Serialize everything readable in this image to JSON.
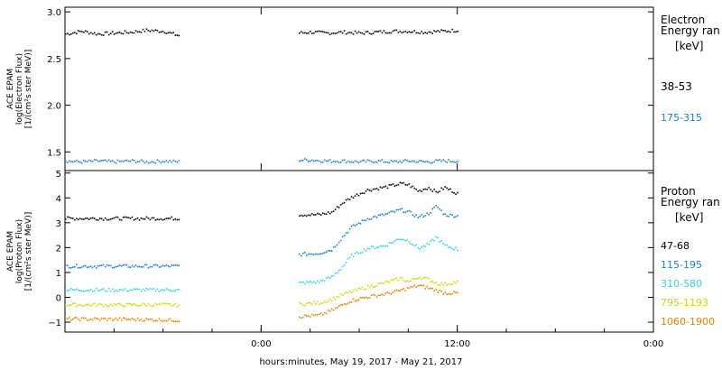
{
  "figure": {
    "xlabel": "hours:minutes, May 19, 2017 - May 21, 2017",
    "x_ticks": [
      {
        "t": 0,
        "label": ""
      },
      {
        "t": 24,
        "label": "0:00"
      },
      {
        "t": 36,
        "label": "12:00"
      },
      {
        "t": 48,
        "label": "0:00"
      }
    ]
  },
  "chart_data": [
    {
      "type": "scatter",
      "panel": "electron",
      "ylabel_lines": [
        "ACE EPAM",
        "log(Electron Flux)",
        "[1/(cm²s ster MeV)]"
      ],
      "ylim": [
        1.3,
        3.05
      ],
      "yticks": [
        1.5,
        2.0,
        2.5,
        3.0
      ],
      "ytick_labels": [
        "1.5",
        "2.0",
        "2.5",
        "3.0"
      ],
      "xlim_hours": [
        12,
        48
      ],
      "data_gaps_hours": [
        [
          19,
          26.2
        ]
      ],
      "legend": {
        "title_lines": [
          "Electron",
          "Energy ran",
          "[keV]"
        ],
        "placement": "right"
      },
      "series": [
        {
          "name": "38-53",
          "color": "#000000",
          "points": [
            [
              12.0,
              2.77
            ],
            [
              13.0,
              2.8
            ],
            [
              14.0,
              2.77
            ],
            [
              15.0,
              2.78
            ],
            [
              16.0,
              2.79
            ],
            [
              17.0,
              2.81
            ],
            [
              18.0,
              2.8
            ],
            [
              19.0,
              2.75
            ],
            [
              26.2,
              2.78
            ],
            [
              27.0,
              2.79
            ],
            [
              28.0,
              2.78
            ],
            [
              29.0,
              2.79
            ],
            [
              30.0,
              2.78
            ],
            [
              31.0,
              2.79
            ],
            [
              32.0,
              2.8
            ],
            [
              33.0,
              2.8
            ],
            [
              34.0,
              2.79
            ],
            [
              35.0,
              2.8
            ],
            [
              36.0,
              2.81
            ]
          ]
        },
        {
          "name": "175-315",
          "color": "#1a7ed6",
          "points": [
            [
              12.0,
              1.41
            ],
            [
              13.0,
              1.4
            ],
            [
              14.0,
              1.41
            ],
            [
              15.0,
              1.4
            ],
            [
              16.0,
              1.41
            ],
            [
              17.0,
              1.4
            ],
            [
              18.0,
              1.41
            ],
            [
              19.0,
              1.4
            ],
            [
              26.2,
              1.42
            ],
            [
              27.0,
              1.42
            ],
            [
              28.0,
              1.41
            ],
            [
              29.0,
              1.41
            ],
            [
              30.0,
              1.4
            ],
            [
              31.0,
              1.41
            ],
            [
              32.0,
              1.4
            ],
            [
              33.0,
              1.41
            ],
            [
              34.0,
              1.4
            ],
            [
              35.0,
              1.41
            ],
            [
              36.0,
              1.41
            ]
          ]
        }
      ]
    },
    {
      "type": "scatter",
      "panel": "proton",
      "ylabel_lines": [
        "ACE EPAM",
        "log(Proton Flux)",
        "[1/(cm²s ster MeV)]"
      ],
      "ylim": [
        -1.4,
        5.1
      ],
      "yticks": [
        -1,
        0,
        1,
        2,
        3,
        4,
        5
      ],
      "ytick_labels": [
        "−1",
        "0",
        "1",
        "2",
        "3",
        "4",
        "5"
      ],
      "xlim_hours": [
        12,
        48
      ],
      "data_gaps_hours": [
        [
          19,
          26.2
        ]
      ],
      "legend": {
        "title_lines": [
          "Proton",
          "Energy ran",
          "[keV]"
        ],
        "placement": "right"
      },
      "series": [
        {
          "name": "47-68",
          "color": "#000000",
          "points": [
            [
              12.0,
              3.2
            ],
            [
              15.0,
              3.2
            ],
            [
              18.0,
              3.2
            ],
            [
              19.0,
              3.2
            ],
            [
              26.2,
              3.35
            ],
            [
              27.5,
              3.35
            ],
            [
              28.3,
              3.45
            ],
            [
              29.0,
              3.85
            ],
            [
              29.5,
              4.05
            ],
            [
              30.5,
              4.35
            ],
            [
              31.5,
              4.45
            ],
            [
              32.5,
              4.6
            ],
            [
              33.0,
              4.55
            ],
            [
              33.6,
              4.3
            ],
            [
              34.2,
              4.45
            ],
            [
              34.7,
              4.25
            ],
            [
              35.2,
              4.45
            ],
            [
              36.0,
              4.2
            ]
          ]
        },
        {
          "name": "115-195",
          "color": "#1a7ed6",
          "points": [
            [
              12.0,
              1.28
            ],
            [
              15.0,
              1.28
            ],
            [
              18.0,
              1.28
            ],
            [
              19.0,
              1.28
            ],
            [
              26.2,
              1.75
            ],
            [
              27.5,
              1.8
            ],
            [
              28.3,
              1.95
            ],
            [
              29.0,
              2.5
            ],
            [
              29.5,
              2.85
            ],
            [
              30.5,
              3.2
            ],
            [
              31.5,
              3.35
            ],
            [
              32.5,
              3.55
            ],
            [
              33.0,
              3.45
            ],
            [
              33.6,
              3.25
            ],
            [
              34.2,
              3.4
            ],
            [
              34.7,
              3.7
            ],
            [
              35.2,
              3.35
            ],
            [
              36.0,
              3.3
            ]
          ]
        },
        {
          "name": "310-580",
          "color": "#33d6d6",
          "points": [
            [
              12.0,
              0.33
            ],
            [
              15.0,
              0.32
            ],
            [
              18.0,
              0.33
            ],
            [
              19.0,
              0.32
            ],
            [
              26.2,
              0.6
            ],
            [
              27.5,
              0.65
            ],
            [
              28.3,
              0.85
            ],
            [
              29.0,
              1.3
            ],
            [
              29.5,
              1.7
            ],
            [
              30.5,
              2.0
            ],
            [
              31.5,
              2.1
            ],
            [
              32.5,
              2.4
            ],
            [
              33.0,
              2.3
            ],
            [
              33.6,
              2.0
            ],
            [
              34.2,
              2.15
            ],
            [
              34.7,
              2.45
            ],
            [
              35.2,
              2.1
            ],
            [
              36.0,
              1.95
            ]
          ]
        },
        {
          "name": "795-1193",
          "color": "#c8d800",
          "points": [
            [
              12.0,
              -0.27
            ],
            [
              15.0,
              -0.28
            ],
            [
              18.0,
              -0.27
            ],
            [
              19.0,
              -0.3
            ],
            [
              26.2,
              -0.25
            ],
            [
              27.5,
              -0.2
            ],
            [
              28.3,
              -0.05
            ],
            [
              29.0,
              0.15
            ],
            [
              29.5,
              0.25
            ],
            [
              30.5,
              0.45
            ],
            [
              31.5,
              0.6
            ],
            [
              32.5,
              0.8
            ],
            [
              33.0,
              0.65
            ],
            [
              33.6,
              0.85
            ],
            [
              34.2,
              0.75
            ],
            [
              34.7,
              0.6
            ],
            [
              35.2,
              0.55
            ],
            [
              36.0,
              0.65
            ]
          ]
        },
        {
          "name": "1060-1900",
          "color": "#e88000",
          "points": [
            [
              12.0,
              -0.85
            ],
            [
              15.0,
              -0.85
            ],
            [
              18.0,
              -0.88
            ],
            [
              19.0,
              -0.9
            ],
            [
              26.2,
              -0.75
            ],
            [
              27.5,
              -0.7
            ],
            [
              28.3,
              -0.5
            ],
            [
              29.0,
              -0.25
            ],
            [
              29.5,
              -0.1
            ],
            [
              30.5,
              0.05
            ],
            [
              31.5,
              0.15
            ],
            [
              32.5,
              0.3
            ],
            [
              33.0,
              0.4
            ],
            [
              33.6,
              0.5
            ],
            [
              34.2,
              0.4
            ],
            [
              34.7,
              0.3
            ],
            [
              35.2,
              0.2
            ],
            [
              36.0,
              0.2
            ]
          ]
        }
      ]
    }
  ]
}
